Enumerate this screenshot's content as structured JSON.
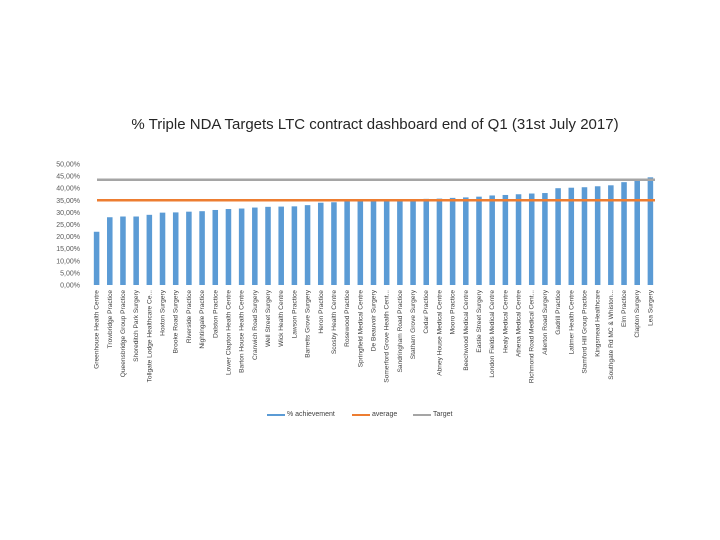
{
  "chart_data": {
    "type": "bar",
    "title": "% Triple NDA Targets LTC contract dashboard end of Q1 (31st July 2017)",
    "categories": [
      "Greenhouse Health Centre",
      "Trowbridge Practice",
      "Queensbridge Group Practice",
      "Shoreditch Park Surgery",
      "Tollgate Lodge Healthcare Ce...",
      "Hoxton Surgery",
      "Brooke Road Surgery",
      "Riverside Practice",
      "Nightingale Practice",
      "Dalston Practice",
      "Lower Clapton Health Centre",
      "Barton House Health Centre",
      "Cranwich Road Surgery",
      "Well Street Surgery",
      "Wick Health Centre",
      "Lawson Practice",
      "Barretts Grove Surgery",
      "Heron Practice",
      "Scosby Health Centre",
      "Rosewood Practice",
      "Springfield Medical Centre",
      "De Beauvoir Surgery",
      "Somerford Grove Health Cent...",
      "Sandringham Road Practice",
      "Statham Grove Surgery",
      "Cedar Practice",
      "Abney House Medical Centre",
      "Mooro Practice",
      "Beechwood Medical Centre",
      "Eastie Street Surgery",
      "London Fields Medical Centre",
      "Healy Medical Centre",
      "Athena Medical Centre",
      "Richmond Road Medical Cent...",
      "Allerton Road Surgery",
      "Gadrill Practice",
      "Latimer Health Centre",
      "Stamford Hill Group Practice",
      "Kingsmead Healthcare",
      "Southgate Rd MC & Whiston...",
      "Elm Practice",
      "Clapton Surgery",
      "Lea Surgery"
    ],
    "series": [
      {
        "name": "% achievement",
        "values": [
          22,
          28,
          28.3,
          28.3,
          29,
          29.9,
          30,
          30.3,
          30.5,
          31,
          31.4,
          31.6,
          32,
          32.3,
          32.4,
          32.5,
          33,
          34,
          34.2,
          34.5,
          34.7,
          34.8,
          35,
          35,
          35.1,
          35.6,
          35.7,
          36,
          36.2,
          36.5,
          37,
          37.2,
          37.5,
          37.8,
          38,
          40,
          40.2,
          40.4,
          40.8,
          41.2,
          42.5,
          43,
          44.5
        ],
        "color": "#5b9bd5"
      },
      {
        "name": "average",
        "value": 35,
        "color": "#ed7d31"
      },
      {
        "name": "Target",
        "value": 43.5,
        "color": "#a5a5a5"
      }
    ],
    "yaxis": {
      "min": 0,
      "max": 50,
      "step": 5,
      "tick_labels": [
        "0,00%",
        "5,00%",
        "10,00%",
        "15,00%",
        "20,00%",
        "25,00%",
        "30,00%",
        "35,00%",
        "40,00%",
        "45,00%",
        "50,00%"
      ]
    },
    "xlabel": "",
    "ylabel": "",
    "grid": false,
    "legend_position": "bottom"
  }
}
